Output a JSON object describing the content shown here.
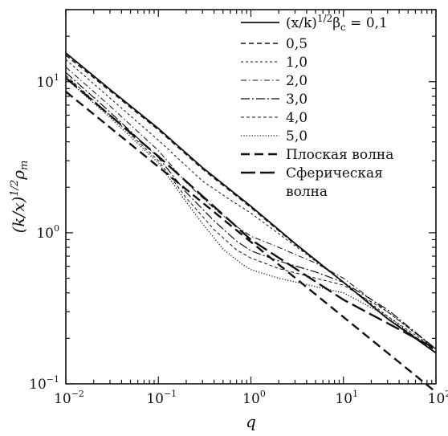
{
  "chart_data": {
    "type": "line",
    "xscale": "log",
    "yscale": "log",
    "xlim": [
      0.01,
      100
    ],
    "ylim": [
      0.1,
      30
    ],
    "xlabel": "q",
    "ylabel": "(k/x)^{1/2}ρ_m",
    "legend_position": "top-right",
    "x_ticks": [
      {
        "base": "10",
        "exp": "−2",
        "value": 0.01
      },
      {
        "base": "10",
        "exp": "−1",
        "value": 0.1
      },
      {
        "base": "10",
        "exp": "0",
        "value": 1
      },
      {
        "base": "10",
        "exp": "1",
        "value": 10
      },
      {
        "base": "10",
        "exp": "2",
        "value": 100
      }
    ],
    "y_ticks": [
      {
        "base": "10",
        "exp": "−1",
        "value": 0.1
      },
      {
        "base": "10",
        "exp": "0",
        "value": 1
      },
      {
        "base": "10",
        "exp": "1",
        "value": 10
      }
    ],
    "legend_header": "(x/k)^{1/2}β_c = 0,1",
    "series": [
      {
        "name": "0,1",
        "dash": "",
        "width": 1.8,
        "x": [
          0.01,
          0.03,
          0.1,
          0.3,
          1,
          3,
          10,
          30,
          100
        ],
        "y": [
          15.5,
          8.9,
          4.9,
          2.7,
          1.5,
          0.85,
          0.47,
          0.27,
          0.16
        ]
      },
      {
        "name": "0,5",
        "dash": "6,4",
        "width": 1.6,
        "x": [
          0.01,
          0.03,
          0.1,
          0.3,
          1,
          3,
          10,
          30,
          100
        ],
        "y": [
          15.0,
          8.7,
          4.8,
          2.65,
          1.47,
          0.84,
          0.47,
          0.27,
          0.165
        ]
      },
      {
        "name": "1,0",
        "dash": "3,3",
        "width": 1.0,
        "x": [
          0.01,
          0.03,
          0.1,
          0.3,
          0.6,
          1,
          3,
          10,
          30,
          100
        ],
        "y": [
          14.0,
          7.8,
          4.1,
          2.2,
          1.65,
          1.35,
          0.82,
          0.47,
          0.28,
          0.17
        ]
      },
      {
        "name": "2,0",
        "dash": "7,3,1.5,3",
        "width": 1.0,
        "x": [
          0.01,
          0.03,
          0.1,
          0.2,
          0.4,
          0.7,
          1,
          2,
          5,
          10,
          30,
          100
        ],
        "y": [
          12.5,
          6.9,
          3.5,
          2.15,
          1.45,
          1.1,
          0.95,
          0.8,
          0.63,
          0.5,
          0.3,
          0.17
        ]
      },
      {
        "name": "3,0",
        "dash": "11,3,2,3",
        "width": 1.2,
        "x": [
          0.01,
          0.03,
          0.1,
          0.2,
          0.4,
          0.7,
          1,
          2,
          5,
          10,
          30,
          100
        ],
        "y": [
          11.5,
          6.3,
          3.15,
          1.85,
          1.2,
          0.88,
          0.76,
          0.65,
          0.55,
          0.47,
          0.31,
          0.17
        ]
      },
      {
        "name": "4,0",
        "dash": "4,3",
        "width": 1.0,
        "x": [
          0.01,
          0.03,
          0.1,
          0.2,
          0.4,
          0.7,
          1,
          2,
          5,
          10,
          30,
          100
        ],
        "y": [
          11.0,
          6.0,
          3.0,
          1.7,
          1.05,
          0.77,
          0.68,
          0.58,
          0.5,
          0.45,
          0.3,
          0.17
        ]
      },
      {
        "name": "5,0",
        "dash": "1.2,2.2",
        "width": 1.3,
        "x": [
          0.01,
          0.03,
          0.1,
          0.2,
          0.3,
          0.5,
          0.8,
          1,
          2,
          5,
          10,
          30,
          100
        ],
        "y": [
          10.5,
          5.8,
          2.9,
          1.6,
          1.15,
          0.78,
          0.62,
          0.57,
          0.5,
          0.44,
          0.4,
          0.28,
          0.16
        ]
      },
      {
        "name": "Плоская волна",
        "dash": "11,6",
        "width": 2.4,
        "x": [
          0.01,
          100
        ],
        "y": [
          8.6,
          0.088
        ]
      },
      {
        "name": "Сферическая волна",
        "dash": "18,6",
        "width": 2.4,
        "x": [
          0.01,
          0.1,
          1,
          10,
          100
        ],
        "y": [
          10.6,
          3.2,
          0.9,
          0.36,
          0.17
        ]
      }
    ],
    "legend_items": [
      {
        "label": "0,5",
        "series": 1
      },
      {
        "label": "1,0",
        "series": 2
      },
      {
        "label": "2,0",
        "series": 3
      },
      {
        "label": "3,0",
        "series": 4
      },
      {
        "label": "4,0",
        "series": 5
      },
      {
        "label": "5,0",
        "series": 6
      },
      {
        "label": "Плоская волна",
        "series": 7
      },
      {
        "label": "Сферическая",
        "label2": "волна",
        "series": 8
      }
    ]
  }
}
